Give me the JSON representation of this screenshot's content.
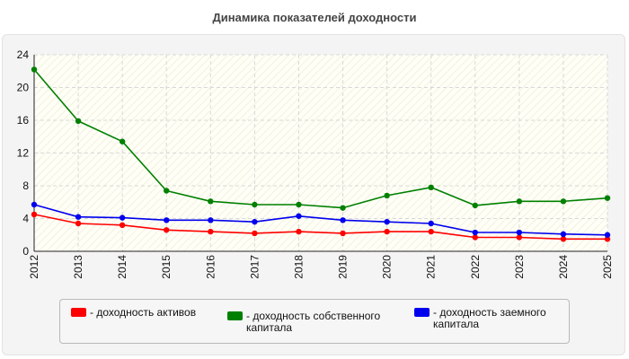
{
  "chart_data": {
    "type": "line",
    "title": "Динамика показателей доходности",
    "xlabel": "",
    "ylabel": "",
    "x": [
      "2012",
      "2013",
      "2014",
      "2015",
      "2016",
      "2017",
      "2018",
      "2019",
      "2020",
      "2021",
      "2022",
      "2023",
      "2024",
      "2025"
    ],
    "ylim": [
      0,
      24
    ],
    "yticks": [
      "0",
      "4",
      "8",
      "12",
      "16",
      "20",
      "24"
    ],
    "grid": true,
    "legend_position": "bottom",
    "series": [
      {
        "name": "- доходность активов",
        "color": "#ff0000",
        "values": [
          4.5,
          3.4,
          3.2,
          2.6,
          2.4,
          2.2,
          2.4,
          2.2,
          2.4,
          2.4,
          1.7,
          1.7,
          1.5,
          1.5
        ]
      },
      {
        "name": "- доходность собственного капитала",
        "color": "#008000",
        "values": [
          22.2,
          15.9,
          13.4,
          7.4,
          6.1,
          5.7,
          5.7,
          5.3,
          6.8,
          7.8,
          5.6,
          6.1,
          6.1,
          6.5
        ]
      },
      {
        "name": "- доходность заемного капитала",
        "color": "#0000ee",
        "values": [
          5.7,
          4.2,
          4.1,
          3.8,
          3.8,
          3.6,
          4.3,
          3.8,
          3.6,
          3.4,
          2.3,
          2.3,
          2.1,
          2.0
        ]
      }
    ]
  }
}
